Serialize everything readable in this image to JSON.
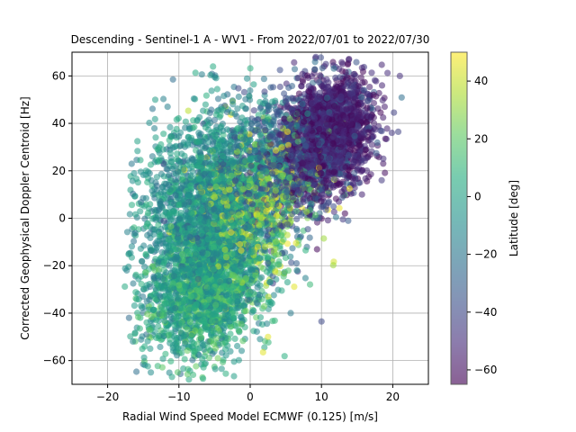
{
  "chart_data": {
    "type": "scatter",
    "title": "Descending - Sentinel-1 A - WV1 - From 2022/07/01 to 2022/07/30",
    "xlabel": "Radial Wind Speed Model ECMWF (0.125) [m/s]",
    "ylabel": "Corrected Geophysical Doppler Centroid [Hz]",
    "xlim": [
      -25,
      25
    ],
    "ylim": [
      -70,
      70
    ],
    "xticks": [
      -20,
      -10,
      0,
      10,
      20
    ],
    "yticks": [
      -60,
      -40,
      -20,
      0,
      20,
      40,
      60
    ],
    "grid": true,
    "colorbar": {
      "label": "Latitude [deg]",
      "range": [
        -65,
        50
      ],
      "ticks": [
        -60,
        -40,
        -20,
        0,
        20,
        40
      ],
      "colormap": "viridis"
    },
    "point_alpha": 0.55,
    "clusters": [
      {
        "lat_range": [
          -65,
          -45
        ],
        "x_mean": 11,
        "y_mean": 35,
        "x_sd": 3.2,
        "y_sd": 12,
        "count": 1800
      },
      {
        "lat_range": [
          -45,
          -20
        ],
        "x_mean": 5,
        "y_mean": 25,
        "x_sd": 5,
        "y_sd": 16,
        "count": 900
      },
      {
        "lat_range": [
          -25,
          10
        ],
        "x_mean": -6,
        "y_mean": 2,
        "x_sd": 5,
        "y_sd": 22,
        "count": 2200
      },
      {
        "lat_range": [
          -15,
          25
        ],
        "x_mean": -6,
        "y_mean": -30,
        "x_sd": 4,
        "y_sd": 14,
        "count": 1400
      },
      {
        "lat_range": [
          10,
          50
        ],
        "x_mean": 1,
        "y_mean": 5,
        "x_sd": 4.5,
        "y_sd": 16,
        "count": 700
      }
    ],
    "annotated_points": [
      {
        "x": 10,
        "y": -43.5,
        "lat": -40
      },
      {
        "x": 1.8,
        "y": -56.5,
        "lat": 45
      },
      {
        "x": 2.5,
        "y": -50,
        "lat": 45
      },
      {
        "x": 21,
        "y": 60,
        "lat": -50
      },
      {
        "x": 13,
        "y": -0.5,
        "lat": -45
      },
      {
        "x": -8,
        "y": -66,
        "lat": 10
      },
      {
        "x": -17,
        "y": -42,
        "lat": -25
      },
      {
        "x": 6.5,
        "y": -19,
        "lat": -30
      }
    ]
  }
}
